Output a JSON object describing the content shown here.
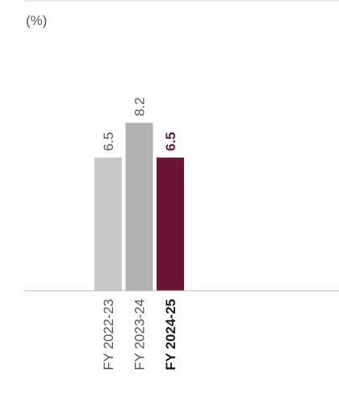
{
  "chart_data": {
    "type": "bar",
    "unit_label": "(%)",
    "categories": [
      "FY 2022-23",
      "FY 2023-24",
      "FY 2024-25"
    ],
    "values": [
      6.5,
      8.2,
      6.5
    ],
    "value_labels": [
      "6.5",
      "8.2",
      "6.5"
    ],
    "highlight_index": 2,
    "ylim": [
      0,
      8.2
    ],
    "grid": false,
    "colors": {
      "bars": [
        "#c8c8c8",
        "#b1b1b1",
        "#6b1435"
      ],
      "value_text": [
        "#555555",
        "#555555",
        "#6b1435"
      ],
      "axis": "#bbbbbb"
    }
  }
}
